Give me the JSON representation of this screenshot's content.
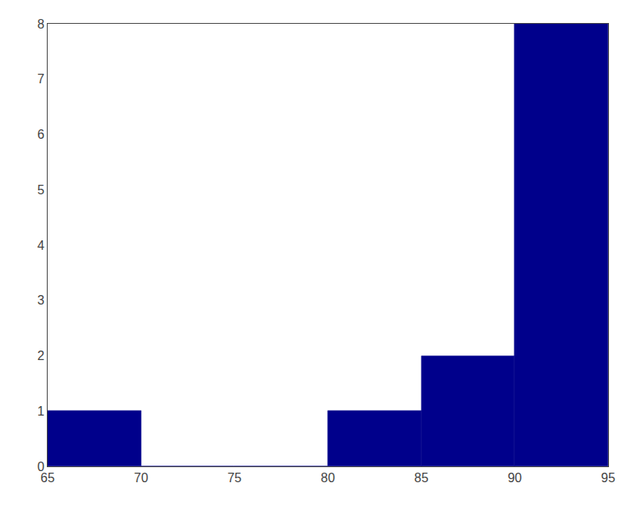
{
  "chart_data": {
    "type": "histogram",
    "bins": [
      65,
      70,
      75,
      80,
      85,
      90,
      95
    ],
    "values": [
      1,
      0,
      0,
      1,
      2,
      8
    ],
    "color": "#00008B",
    "xlim": [
      65,
      95
    ],
    "ylim": [
      0,
      8
    ],
    "xticks": [
      65,
      70,
      75,
      80,
      85,
      90,
      95
    ],
    "yticks": [
      0,
      1,
      2,
      3,
      4,
      5,
      6,
      7,
      8
    ],
    "grid": false
  }
}
